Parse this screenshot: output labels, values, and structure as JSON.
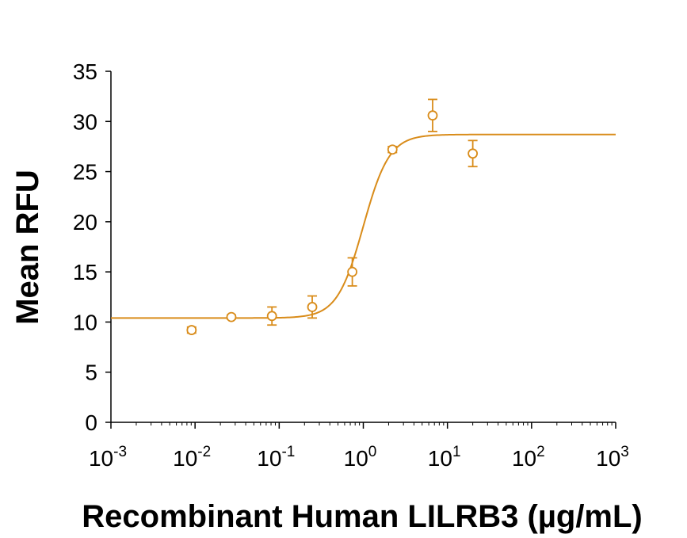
{
  "chart_data": {
    "type": "scatter",
    "xlabel": "Recombinant Human LILRB3 (µg/mL)",
    "ylabel": "Mean RFU",
    "x_scale": "log",
    "xlim": [
      0.001,
      1000
    ],
    "ylim": [
      0,
      35
    ],
    "x_ticks": [
      {
        "base": "10",
        "exp": "-3",
        "value": 0.001
      },
      {
        "base": "10",
        "exp": "-2",
        "value": 0.01
      },
      {
        "base": "10",
        "exp": "-1",
        "value": 0.1
      },
      {
        "base": "10",
        "exp": "0",
        "value": 1
      },
      {
        "base": "10",
        "exp": "1",
        "value": 10
      },
      {
        "base": "10",
        "exp": "2",
        "value": 100
      },
      {
        "base": "10",
        "exp": "3",
        "value": 1000
      }
    ],
    "y_ticks": [
      "0",
      "5",
      "10",
      "15",
      "20",
      "25",
      "30",
      "35"
    ],
    "grid": false,
    "color": "#D98C1A",
    "points": [
      {
        "x": 0.0091,
        "y": 9.2,
        "err": 0.3
      },
      {
        "x": 0.027,
        "y": 10.5,
        "err": 0.2
      },
      {
        "x": 0.082,
        "y": 10.6,
        "err": 0.9
      },
      {
        "x": 0.247,
        "y": 11.5,
        "err": 1.1
      },
      {
        "x": 0.74,
        "y": 15.0,
        "err": 1.4
      },
      {
        "x": 2.22,
        "y": 27.2,
        "err": 0.3
      },
      {
        "x": 6.67,
        "y": 30.6,
        "err": 1.6
      },
      {
        "x": 20.0,
        "y": 26.8,
        "err": 1.3
      }
    ],
    "fit": {
      "bottom": 10.4,
      "top": 28.7,
      "ec50": 1.0,
      "hill": 2.8
    }
  }
}
